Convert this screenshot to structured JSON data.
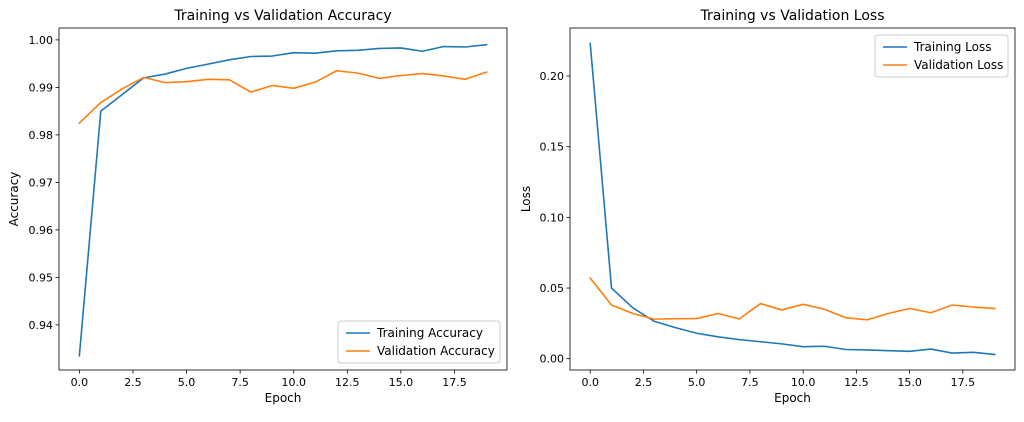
{
  "chart_data": [
    {
      "type": "line",
      "title": "Training vs Validation Accuracy",
      "xlabel": "Epoch",
      "ylabel": "Accuracy",
      "xlim": [
        -0.95,
        19.95
      ],
      "ylim": [
        0.9305,
        1.0025
      ],
      "xticks": [
        0,
        2.5,
        5,
        7.5,
        10,
        12.5,
        15,
        17.5
      ],
      "xtick_labels": [
        "0.0",
        "2.5",
        "5.0",
        "7.5",
        "10.0",
        "12.5",
        "15.0",
        "17.5"
      ],
      "yticks": [
        0.94,
        0.95,
        0.96,
        0.97,
        0.98,
        0.99,
        1.0
      ],
      "ytick_labels": [
        "0.94",
        "0.95",
        "0.96",
        "0.97",
        "0.98",
        "0.99",
        "1.00"
      ],
      "legend_position": "lower-right",
      "x": [
        0,
        1,
        2,
        3,
        4,
        5,
        6,
        7,
        8,
        9,
        10,
        11,
        12,
        13,
        14,
        15,
        16,
        17,
        18,
        19
      ],
      "series": [
        {
          "name": "Training Accuracy",
          "color": "#1f77b4",
          "values": [
            0.9335,
            0.985,
            0.9885,
            0.992,
            0.9928,
            0.994,
            0.9949,
            0.9958,
            0.9965,
            0.9966,
            0.9973,
            0.9972,
            0.9977,
            0.9978,
            0.9982,
            0.9983,
            0.9976,
            0.9986,
            0.9985,
            0.999
          ]
        },
        {
          "name": "Validation Accuracy",
          "color": "#ff7f0e",
          "values": [
            0.9825,
            0.9868,
            0.9897,
            0.9921,
            0.991,
            0.9912,
            0.9917,
            0.9916,
            0.989,
            0.9904,
            0.9898,
            0.9911,
            0.9935,
            0.993,
            0.9919,
            0.9925,
            0.9929,
            0.9924,
            0.9917,
            0.9932
          ]
        }
      ]
    },
    {
      "type": "line",
      "title": "Training vs Validation Loss",
      "xlabel": "Epoch",
      "ylabel": "Loss",
      "xlim": [
        -0.95,
        19.95
      ],
      "ylim": [
        -0.008,
        0.234
      ],
      "xticks": [
        0,
        2.5,
        5,
        7.5,
        10,
        12.5,
        15,
        17.5
      ],
      "xtick_labels": [
        "0.0",
        "2.5",
        "5.0",
        "7.5",
        "10.0",
        "12.5",
        "15.0",
        "17.5"
      ],
      "yticks": [
        0,
        0.05,
        0.1,
        0.15,
        0.2
      ],
      "ytick_labels": [
        "0.00",
        "0.05",
        "0.10",
        "0.15",
        "0.20"
      ],
      "legend_position": "upper-right",
      "x": [
        0,
        1,
        2,
        3,
        4,
        5,
        6,
        7,
        8,
        9,
        10,
        11,
        12,
        13,
        14,
        15,
        16,
        17,
        18,
        19
      ],
      "series": [
        {
          "name": "Training Loss",
          "color": "#1f77b4",
          "values": [
            0.223,
            0.05,
            0.036,
            0.0265,
            0.022,
            0.018,
            0.0155,
            0.0135,
            0.012,
            0.0105,
            0.0085,
            0.0088,
            0.0065,
            0.0062,
            0.0057,
            0.0052,
            0.0068,
            0.004,
            0.0045,
            0.003
          ]
        },
        {
          "name": "Validation Loss",
          "color": "#ff7f0e",
          "values": [
            0.057,
            0.038,
            0.032,
            0.028,
            0.0283,
            0.0284,
            0.032,
            0.0282,
            0.039,
            0.0345,
            0.0385,
            0.035,
            0.029,
            0.0275,
            0.032,
            0.0355,
            0.0325,
            0.038,
            0.0365,
            0.0355
          ]
        }
      ]
    }
  ]
}
